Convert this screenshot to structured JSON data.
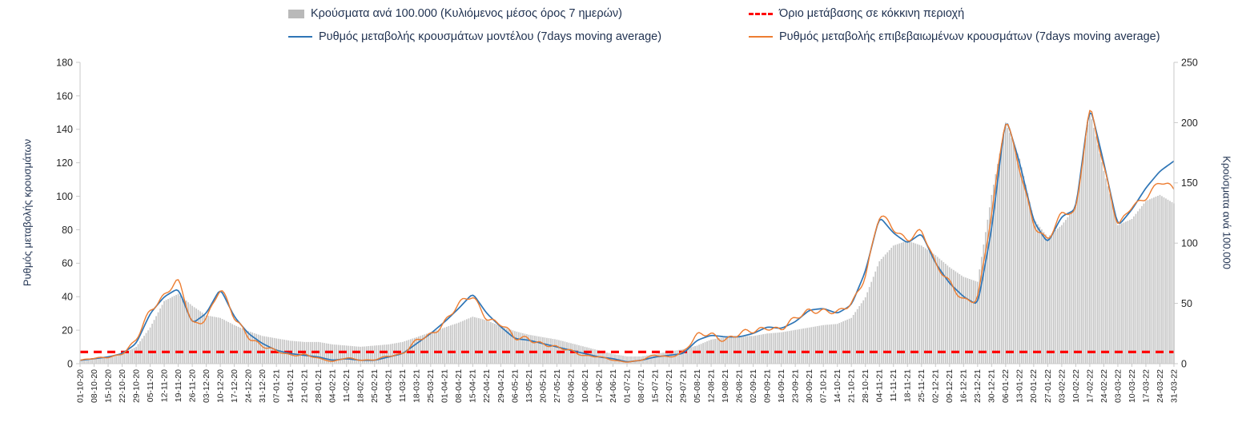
{
  "legend": {
    "bars": "Κρούσματα ανά 100.000 (Κυλιόμενος μέσος όρος 7 ημερών)",
    "threshold": "Όριο μετάβασης σε κόκκινη περιοχή",
    "model": "Ρυθμός μεταβολής κρουσμάτων μοντέλου (7days moving average)",
    "confirmed": "Ρυθμός μεταβολής επιβεβαιωμένων κρουσμάτων (7days moving average)"
  },
  "axes": {
    "left_label": "Ρυθμός μεταβολής κρουσμάτων",
    "right_label": "Κρούσματα ανά 100.000",
    "left_ticks": [
      0,
      20,
      40,
      60,
      80,
      100,
      120,
      140,
      160,
      180
    ],
    "right_ticks": [
      0,
      50,
      100,
      150,
      200,
      250
    ]
  },
  "chart_data": {
    "type": "combo",
    "title": "",
    "grid": false,
    "legend_position": "top",
    "ylim_left": [
      0,
      180
    ],
    "ylim_right": [
      0,
      250
    ],
    "x": [
      "01-10-20",
      "08-10-20",
      "15-10-20",
      "22-10-20",
      "29-10-20",
      "05-11-20",
      "12-11-20",
      "19-11-20",
      "26-11-20",
      "03-12-20",
      "10-12-20",
      "17-12-20",
      "24-12-20",
      "31-12-20",
      "07-01-21",
      "14-01-21",
      "21-01-21",
      "28-01-21",
      "04-02-21",
      "11-02-21",
      "18-02-21",
      "25-02-21",
      "04-03-21",
      "11-03-21",
      "18-03-21",
      "25-03-21",
      "01-04-21",
      "08-04-21",
      "15-04-21",
      "22-04-21",
      "29-04-21",
      "06-05-21",
      "13-05-21",
      "20-05-21",
      "27-05-21",
      "03-06-21",
      "10-06-21",
      "17-06-21",
      "24-06-21",
      "01-07-21",
      "08-07-21",
      "15-07-21",
      "22-07-21",
      "29-07-21",
      "05-08-21",
      "12-08-21",
      "19-08-21",
      "26-08-21",
      "02-09-21",
      "09-09-21",
      "16-09-21",
      "23-09-21",
      "30-09-21",
      "07-10-21",
      "14-10-21",
      "21-10-21",
      "28-10-21",
      "04-11-21",
      "11-11-21",
      "18-11-21",
      "25-11-21",
      "02-12-21",
      "09-12-21",
      "16-12-21",
      "23-12-21",
      "30-12-21",
      "06-01-22",
      "13-01-22",
      "20-01-22",
      "27-01-22",
      "03-02-22",
      "10-02-22",
      "17-02-22",
      "24-02-22",
      "03-03-22",
      "10-03-22",
      "17-03-22",
      "24-03-22",
      "31-03-22"
    ],
    "series": [
      {
        "name": "Κρούσματα ανά 100.000 (Κυλιόμενος μέσος όρος 7 ημερών)",
        "type": "bar",
        "axis": "right",
        "color": "#c7c7c7",
        "values": [
          3,
          4,
          5,
          8,
          14,
          30,
          52,
          58,
          48,
          40,
          38,
          32,
          27,
          23,
          21,
          19,
          18,
          18,
          16,
          15,
          14,
          15,
          16,
          18,
          22,
          26,
          30,
          34,
          39,
          36,
          31,
          27,
          24,
          22,
          20,
          17,
          14,
          11,
          8,
          6,
          6,
          8,
          10,
          12,
          15,
          20,
          22,
          23,
          23,
          25,
          26,
          28,
          30,
          32,
          33,
          38,
          55,
          85,
          98,
          102,
          98,
          90,
          80,
          72,
          68,
          140,
          200,
          170,
          120,
          105,
          115,
          130,
          210,
          160,
          115,
          120,
          135,
          140,
          133
        ]
      },
      {
        "name": "Ρυθμός μεταβολής κρουσμάτων μοντέλου (7days moving average)",
        "type": "line",
        "axis": "left",
        "color": "#2e75b6",
        "values": [
          2,
          3,
          4,
          6,
          12,
          30,
          40,
          45,
          24,
          30,
          45,
          28,
          18,
          12,
          8,
          6,
          5,
          4,
          2,
          3,
          2,
          2,
          4,
          6,
          12,
          18,
          25,
          33,
          42,
          30,
          22,
          15,
          14,
          12,
          10,
          8,
          6,
          4,
          3,
          1,
          2,
          4,
          5,
          6,
          14,
          17,
          16,
          16,
          18,
          22,
          21,
          25,
          32,
          33,
          30,
          35,
          55,
          88,
          78,
          72,
          78,
          60,
          48,
          40,
          35,
          80,
          148,
          120,
          85,
          72,
          88,
          92,
          155,
          120,
          82,
          92,
          105,
          115,
          121
        ]
      },
      {
        "name": "Ρυθμός μεταβολής επιβεβαιωμένων κρουσμάτων (7days moving average)",
        "type": "line",
        "axis": "left",
        "color": "#ed7d31",
        "values": [
          2,
          3,
          4,
          6,
          13,
          32,
          42,
          50,
          22,
          28,
          46,
          26,
          17,
          11,
          7,
          5,
          6,
          3,
          1,
          4,
          2,
          2,
          5,
          6,
          13,
          17,
          26,
          35,
          40,
          28,
          24,
          14,
          16,
          12,
          9,
          8,
          5,
          4,
          2,
          1,
          2,
          5,
          4,
          7,
          16,
          18,
          15,
          17,
          19,
          23,
          20,
          26,
          33,
          32,
          29,
          36,
          53,
          89,
          80,
          75,
          80,
          58,
          50,
          38,
          36,
          90,
          150,
          115,
          82,
          75,
          90,
          88,
          157,
          118,
          80,
          95,
          100,
          108,
          104
        ]
      },
      {
        "name": "Όριο μετάβασης σε κόκκινη περιοχή",
        "type": "threshold",
        "axis": "left",
        "value": 7,
        "color": "#ff0000",
        "dash": true
      }
    ]
  }
}
